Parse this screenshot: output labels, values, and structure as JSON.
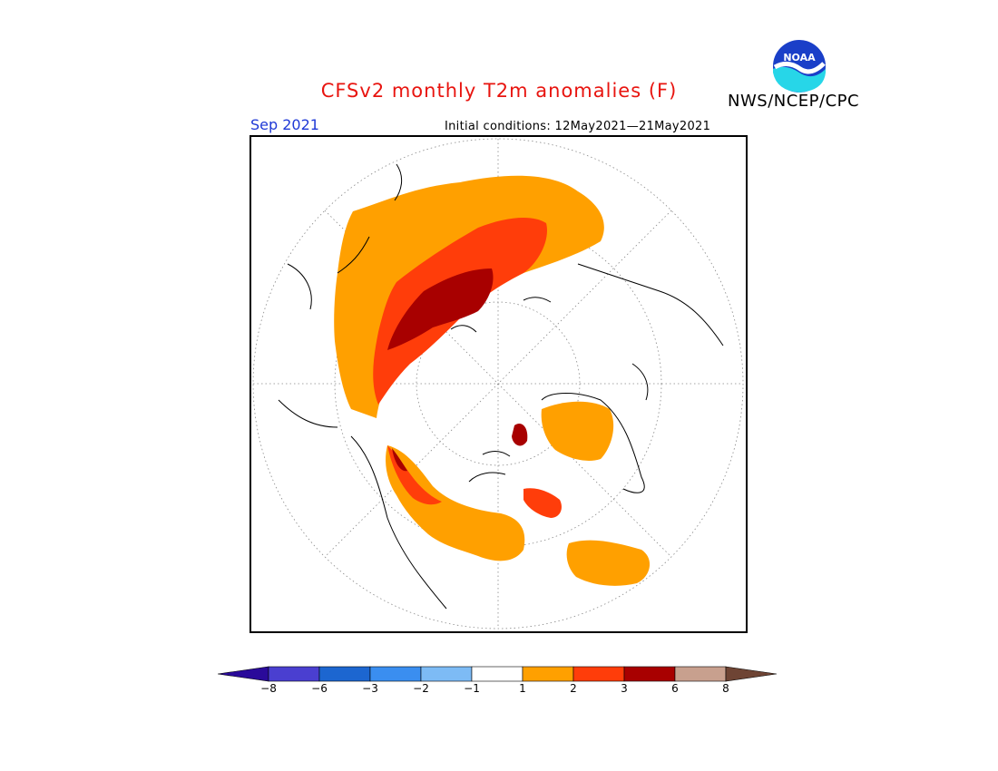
{
  "header": {
    "title": "CFSv2 monthly T2m anomalies (F)",
    "agency": "NWS/NCEP/CPC",
    "logo_text": "NOAA"
  },
  "map": {
    "valid_month": "Sep 2021",
    "initial_conditions": "Initial conditions: 12May2021—21May2021",
    "projection": "north-polar-stereographic"
  },
  "colorbar": {
    "labels": [
      "−8",
      "−6",
      "−3",
      "−2",
      "−1",
      "1",
      "2",
      "3",
      "6",
      "8"
    ],
    "colors": [
      "#2a0a9a",
      "#4a3fd0",
      "#1c66d0",
      "#3a8ef0",
      "#7dbbf5",
      "#ffffff",
      "#ffa000",
      "#ff3d0a",
      "#a80000",
      "#c8a08e",
      "#6e4434"
    ]
  },
  "colors": {
    "title": "#e8140f",
    "month": "#1f39d6",
    "anom_1_2": "#ffa000",
    "anom_2_3": "#ff3d0a",
    "anom_3_6": "#a80000"
  }
}
